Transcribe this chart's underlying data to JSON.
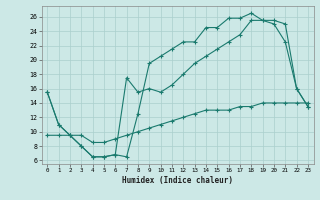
{
  "xlabel": "Humidex (Indice chaleur)",
  "background_color": "#cce8e6",
  "grid_color": "#aacfcd",
  "line_color": "#1a7a6e",
  "xlim": [
    -0.5,
    23.5
  ],
  "ylim": [
    5.5,
    27.5
  ],
  "xticks": [
    0,
    1,
    2,
    3,
    4,
    5,
    6,
    7,
    8,
    9,
    10,
    11,
    12,
    13,
    14,
    15,
    16,
    17,
    18,
    19,
    20,
    21,
    22,
    23
  ],
  "yticks": [
    6,
    8,
    10,
    12,
    14,
    16,
    18,
    20,
    22,
    24,
    26
  ],
  "line1_x": [
    0,
    1,
    2,
    3,
    4,
    5,
    6,
    7,
    8,
    9,
    10,
    11,
    12,
    13,
    14,
    15,
    16,
    17,
    18,
    19,
    20,
    21,
    22,
    23
  ],
  "line1_y": [
    15.5,
    11,
    9.5,
    8,
    6.5,
    6.5,
    6.8,
    6.5,
    12.5,
    19.5,
    20.5,
    21.5,
    22.5,
    22.5,
    24.5,
    24.5,
    25.8,
    25.8,
    26.5,
    25.5,
    25.0,
    22.5,
    16.0,
    13.5
  ],
  "line2_x": [
    0,
    1,
    2,
    3,
    4,
    5,
    6,
    7,
    8,
    9,
    10,
    11,
    12,
    13,
    14,
    15,
    16,
    17,
    18,
    19,
    20,
    21,
    22,
    23
  ],
  "line2_y": [
    15.5,
    11,
    9.5,
    8,
    6.5,
    6.5,
    6.8,
    17.5,
    15.5,
    16.0,
    15.5,
    16.5,
    18.0,
    19.5,
    20.5,
    21.5,
    22.5,
    23.5,
    25.5,
    25.5,
    25.5,
    25.0,
    16.0,
    13.5
  ],
  "line3_x": [
    0,
    1,
    2,
    3,
    4,
    5,
    6,
    7,
    8,
    9,
    10,
    11,
    12,
    13,
    14,
    15,
    16,
    17,
    18,
    19,
    20,
    21,
    22,
    23
  ],
  "line3_y": [
    9.5,
    9.5,
    9.5,
    9.5,
    8.5,
    8.5,
    9.0,
    9.5,
    10.0,
    10.5,
    11.0,
    11.5,
    12.0,
    12.5,
    13.0,
    13.0,
    13.0,
    13.5,
    13.5,
    14.0,
    14.0,
    14.0,
    14.0,
    14.0
  ]
}
